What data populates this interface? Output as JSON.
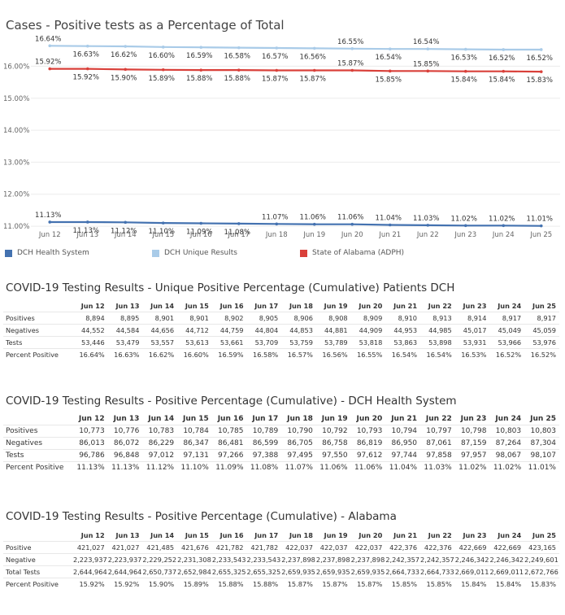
{
  "chart_data": {
    "type": "line",
    "title": "Cases - Positive tests as a Percentage of Total",
    "categories": [
      "Jun 12",
      "Jun 13",
      "Jun 14",
      "Jun 15",
      "Jun 16",
      "Jun 17",
      "Jun 18",
      "Jun 19",
      "Jun 20",
      "Jun 21",
      "Jun 22",
      "Jun 23",
      "Jun 24",
      "Jun 25"
    ],
    "yticks": [
      "11.00%",
      "12.00%",
      "13.00%",
      "14.00%",
      "15.00%",
      "16.00%"
    ],
    "ylim": [
      10.9,
      16.85
    ],
    "grid": true,
    "legend_position": "bottom",
    "series": [
      {
        "name": "DCH Health System",
        "color": "#4472b0",
        "values": [
          11.13,
          11.13,
          11.12,
          11.1,
          11.09,
          11.08,
          11.07,
          11.06,
          11.06,
          11.04,
          11.03,
          11.02,
          11.02,
          11.01
        ]
      },
      {
        "name": "DCH Unique Results",
        "color": "#a9cbe8",
        "values": [
          16.64,
          16.63,
          16.62,
          16.6,
          16.59,
          16.58,
          16.57,
          16.56,
          16.55,
          16.54,
          16.54,
          16.53,
          16.52,
          16.52
        ]
      },
      {
        "name": "State of Alabama (ADPH)",
        "color": "#d9403a",
        "values": [
          15.92,
          15.92,
          15.9,
          15.89,
          15.88,
          15.88,
          15.87,
          15.87,
          15.87,
          15.85,
          15.85,
          15.84,
          15.84,
          15.83
        ]
      }
    ],
    "data_labels": [
      [
        "11.13%",
        "11.13%",
        "11.12%",
        "11.10%",
        "11.09%",
        "11.08%",
        "11.07%",
        "11.06%",
        "11.06%",
        "11.04%",
        "11.03%",
        "11.02%",
        "11.02%",
        "11.01%"
      ],
      [
        "16.64%",
        "16.63%",
        "16.62%",
        "16.60%",
        "16.59%",
        "16.58%",
        "16.57%",
        "16.56%",
        "16.55%",
        "16.54%",
        "16.54%",
        "16.53%",
        "16.52%",
        "16.52%"
      ],
      [
        "15.92%",
        "15.92%",
        "15.90%",
        "15.89%",
        "15.88%",
        "15.88%",
        "15.87%",
        "15.87%",
        "15.87%",
        "15.85%",
        "15.85%",
        "15.84%",
        "15.84%",
        "15.83%"
      ]
    ]
  },
  "tables": [
    {
      "title": "COVID-19 Testing Results - Unique Positive Percentage (Cumulative) Patients DCH",
      "columns": [
        "Jun 12",
        "Jun 13",
        "Jun 14",
        "Jun 15",
        "Jun 16",
        "Jun 17",
        "Jun 18",
        "Jun 19",
        "Jun 20",
        "Jun 21",
        "Jun 22",
        "Jun 23",
        "Jun 24",
        "Jun 25"
      ],
      "rows": [
        {
          "label": "Positives",
          "values": [
            "8,894",
            "8,895",
            "8,901",
            "8,901",
            "8,902",
            "8,905",
            "8,906",
            "8,908",
            "8,909",
            "8,910",
            "8,913",
            "8,914",
            "8,917",
            "8,917"
          ]
        },
        {
          "label": "Negatives",
          "values": [
            "44,552",
            "44,584",
            "44,656",
            "44,712",
            "44,759",
            "44,804",
            "44,853",
            "44,881",
            "44,909",
            "44,953",
            "44,985",
            "45,017",
            "45,049",
            "45,059"
          ]
        },
        {
          "label": "Tests",
          "values": [
            "53,446",
            "53,479",
            "53,557",
            "53,613",
            "53,661",
            "53,709",
            "53,759",
            "53,789",
            "53,818",
            "53,863",
            "53,898",
            "53,931",
            "53,966",
            "53,976"
          ]
        },
        {
          "label": "Percent Positive",
          "values": [
            "16.64%",
            "16.63%",
            "16.62%",
            "16.60%",
            "16.59%",
            "16.58%",
            "16.57%",
            "16.56%",
            "16.55%",
            "16.54%",
            "16.54%",
            "16.53%",
            "16.52%",
            "16.52%"
          ]
        }
      ]
    },
    {
      "title": "COVID-19 Testing Results - Positive Percentage (Cumulative) - DCH Health System",
      "columns": [
        "Jun 12",
        "Jun 13",
        "Jun 14",
        "Jun 15",
        "Jun 16",
        "Jun 17",
        "Jun 18",
        "Jun 19",
        "Jun 20",
        "Jun 21",
        "Jun 22",
        "Jun 23",
        "Jun 24",
        "Jun 25"
      ],
      "rows": [
        {
          "label": "Positives",
          "values": [
            "10,773",
            "10,776",
            "10,783",
            "10,784",
            "10,785",
            "10,789",
            "10,790",
            "10,792",
            "10,793",
            "10,794",
            "10,797",
            "10,798",
            "10,803",
            "10,803"
          ]
        },
        {
          "label": "Negatives",
          "values": [
            "86,013",
            "86,072",
            "86,229",
            "86,347",
            "86,481",
            "86,599",
            "86,705",
            "86,758",
            "86,819",
            "86,950",
            "87,061",
            "87,159",
            "87,264",
            "87,304"
          ]
        },
        {
          "label": "Tests",
          "values": [
            "96,786",
            "96,848",
            "97,012",
            "97,131",
            "97,266",
            "97,388",
            "97,495",
            "97,550",
            "97,612",
            "97,744",
            "97,858",
            "97,957",
            "98,067",
            "98,107"
          ]
        },
        {
          "label": "Percent Positive",
          "values": [
            "11.13%",
            "11.13%",
            "11.12%",
            "11.10%",
            "11.09%",
            "11.08%",
            "11.07%",
            "11.06%",
            "11.06%",
            "11.04%",
            "11.03%",
            "11.02%",
            "11.02%",
            "11.01%"
          ]
        }
      ]
    },
    {
      "title": "COVID-19 Testing Results - Positive Percentage (Cumulative) - Alabama",
      "columns": [
        "Jun 12",
        "Jun 13",
        "Jun 14",
        "Jun 15",
        "Jun 16",
        "Jun 17",
        "Jun 18",
        "Jun 19",
        "Jun 20",
        "Jun 21",
        "Jun 22",
        "Jun 23",
        "Jun 24",
        "Jun 25"
      ],
      "rows": [
        {
          "label": "Positive",
          "values": [
            "421,027",
            "421,027",
            "421,485",
            "421,676",
            "421,782",
            "421,782",
            "422,037",
            "422,037",
            "422,037",
            "422,376",
            "422,376",
            "422,669",
            "422,669",
            "423,165"
          ]
        },
        {
          "label": "Negative",
          "values": [
            "2,223,937",
            "2,223,937",
            "2,229,252",
            "2,231,308",
            "2,233,543",
            "2,233,543",
            "2,237,898",
            "2,237,898",
            "2,237,898",
            "2,242,357",
            "2,242,357",
            "2,246,342",
            "2,246,342",
            "2,249,601"
          ]
        },
        {
          "label": "Total Tests",
          "values": [
            "2,644,964",
            "2,644,964",
            "2,650,737",
            "2,652,984",
            "2,655,325",
            "2,655,325",
            "2,659,935",
            "2,659,935",
            "2,659,935",
            "2,664,733",
            "2,664,733",
            "2,669,011",
            "2,669,011",
            "2,672,766"
          ]
        },
        {
          "label": "Percent Positive",
          "values": [
            "15.92%",
            "15.92%",
            "15.90%",
            "15.89%",
            "15.88%",
            "15.88%",
            "15.87%",
            "15.87%",
            "15.87%",
            "15.85%",
            "15.85%",
            "15.84%",
            "15.84%",
            "15.83%"
          ]
        }
      ]
    }
  ]
}
